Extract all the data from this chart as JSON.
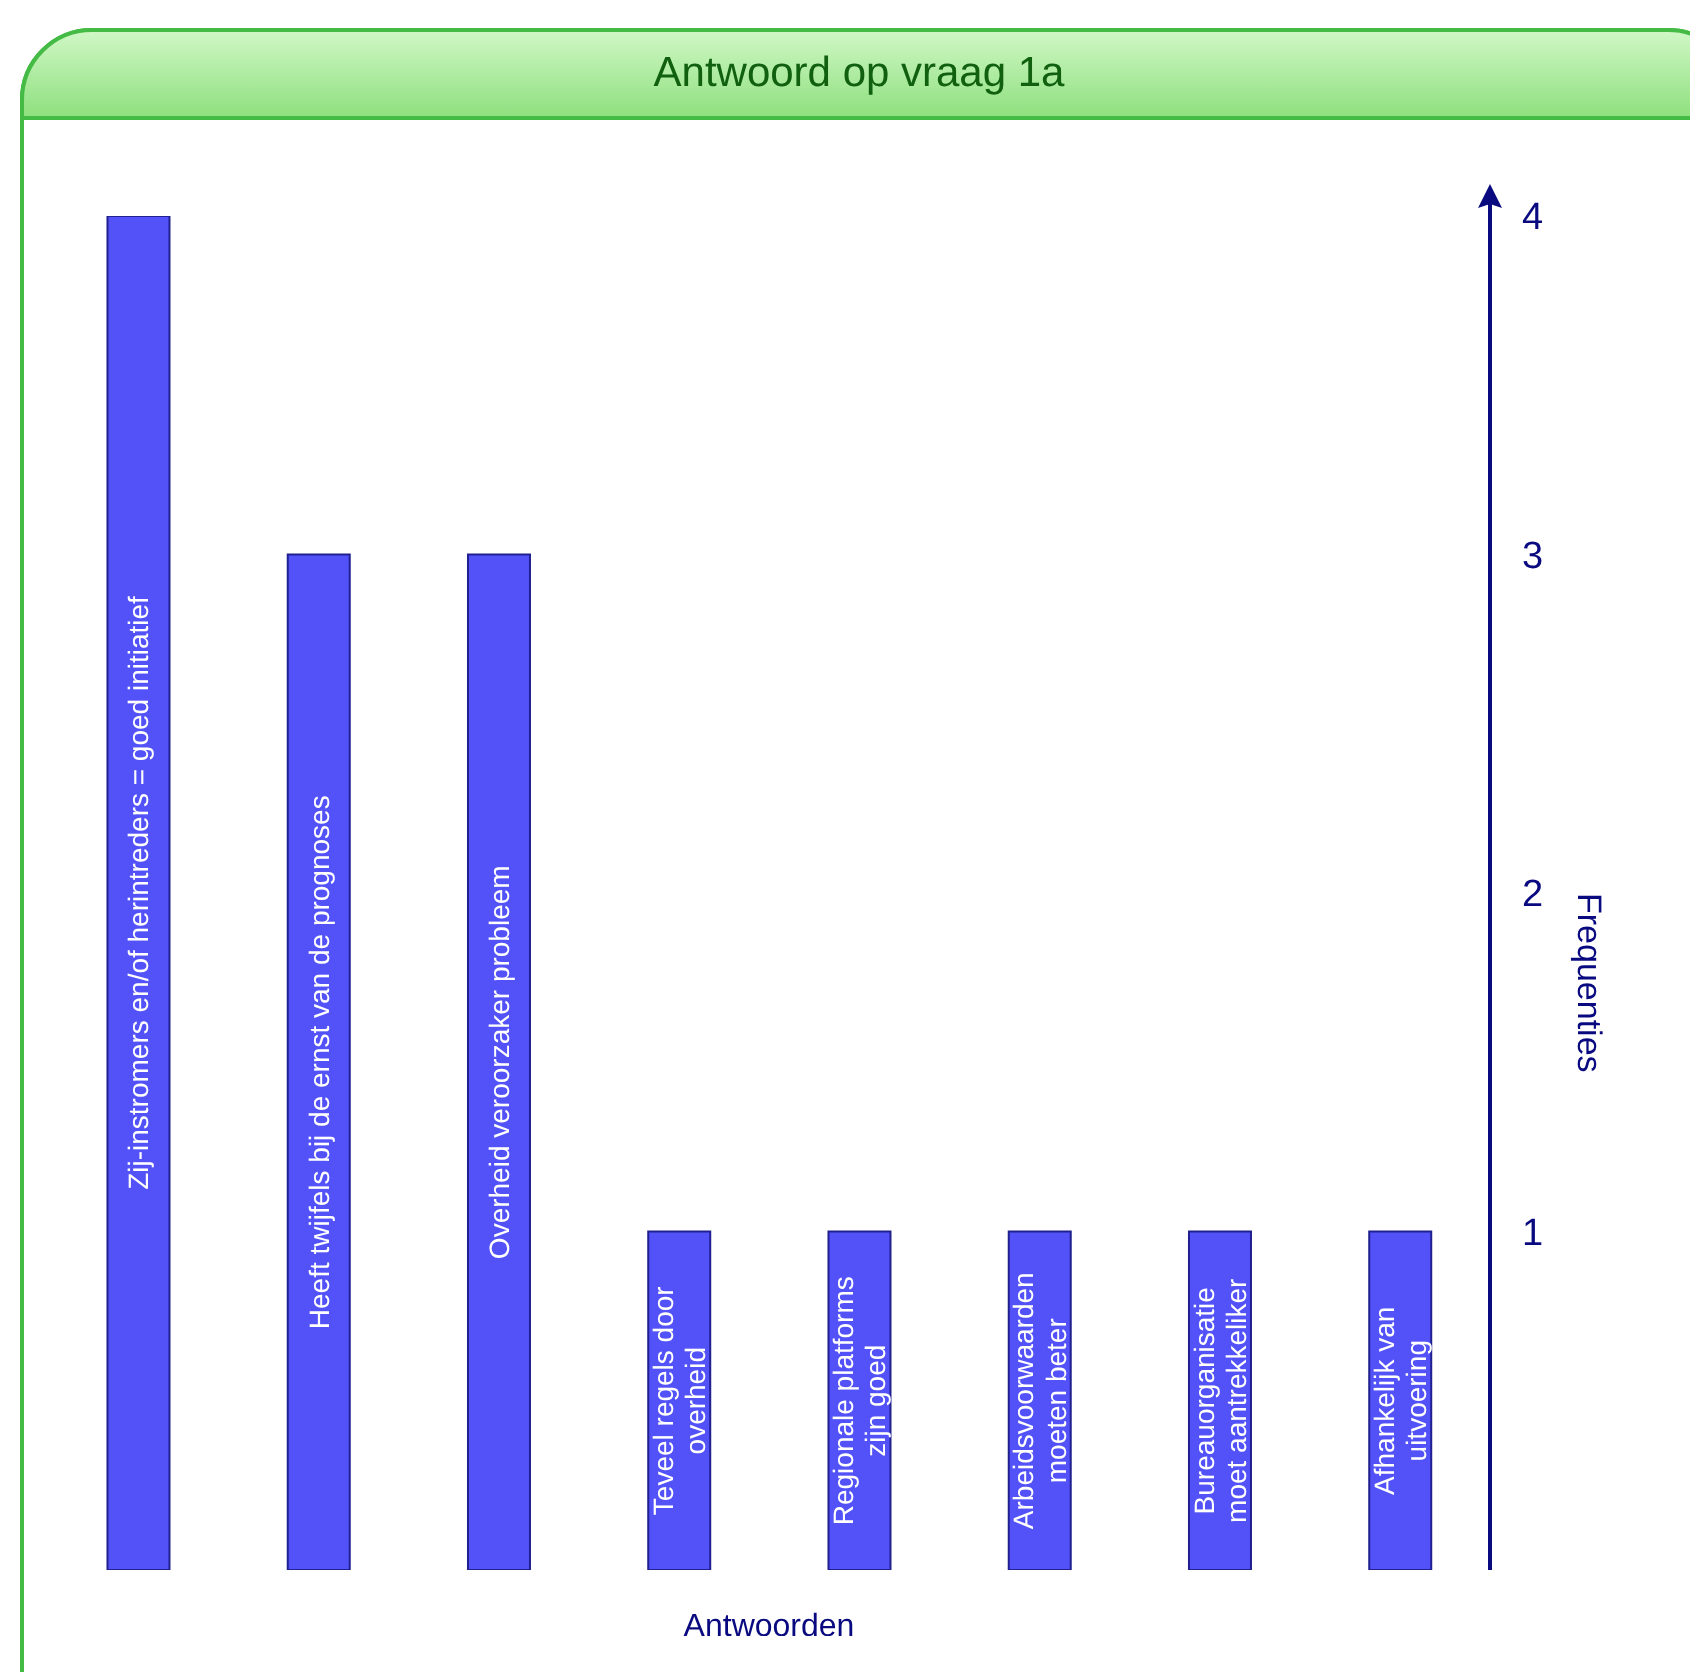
{
  "chart_data": {
    "type": "bar",
    "title": "Antwoord op vraag 1a",
    "xlabel": "Antwoorden",
    "ylabel": "Frequenties",
    "categories": [
      "Zij-instromers en/of herintreders = goed initiatief",
      "Heeft twijfels bij de ernst van de prognoses",
      "Overheid veroorzaker probleem",
      "Teveel regels door overheid",
      "Regionale platforms zijn goed",
      "Arbeidsvoorwaarden moeten beter",
      "Bureauorganisatie moet aantrekkeliker",
      "Afhankelijk van uitvoering"
    ],
    "values": [
      4,
      3,
      3,
      1,
      1,
      1,
      1,
      1
    ],
    "color": "#5252f8",
    "ylim": [
      0,
      4
    ],
    "yticks": [
      1,
      2,
      3,
      4
    ]
  }
}
